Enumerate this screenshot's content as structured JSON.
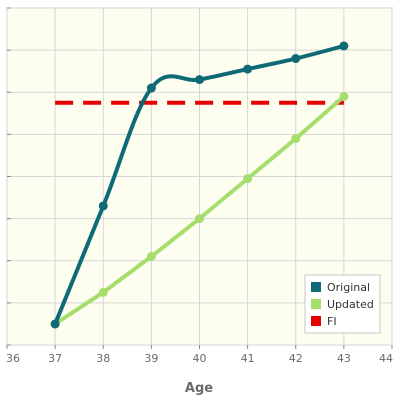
{
  "chart_data": {
    "type": "line",
    "title": "",
    "xlabel": "Age",
    "ylabel": "",
    "xlim": [
      36,
      44
    ],
    "ylim": [
      0,
      8
    ],
    "x_ticks": [
      "36",
      "37",
      "38",
      "39",
      "40",
      "41",
      "42",
      "43",
      "44"
    ],
    "y_tick_count": 9,
    "grid": true,
    "legend_position": "bottom-right",
    "colors": {
      "plot_background": "#fefef0",
      "grid": "#d6d6d6",
      "axis": "#888888"
    },
    "series": [
      {
        "name": "Original",
        "style": "solid-smooth",
        "color": "#0f6a78",
        "x": [
          37,
          38,
          39,
          40,
          41,
          42,
          43
        ],
        "y": [
          0.5,
          3.3,
          6.1,
          6.3,
          6.55,
          6.8,
          7.1
        ]
      },
      {
        "name": "Updated",
        "style": "solid",
        "color": "#a6dd6c",
        "x": [
          37,
          38,
          39,
          40,
          41,
          42,
          43
        ],
        "y": [
          0.5,
          1.25,
          2.1,
          3.0,
          3.95,
          4.9,
          5.9
        ]
      },
      {
        "name": "FI",
        "style": "dashed",
        "color": "#e60000",
        "x": [
          37,
          43
        ],
        "y": [
          5.75,
          5.75
        ]
      }
    ]
  }
}
